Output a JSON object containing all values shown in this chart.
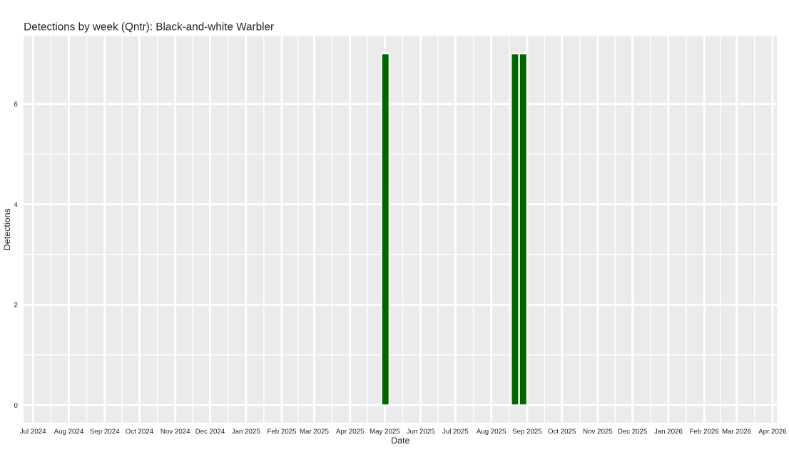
{
  "chart_data": {
    "type": "bar",
    "title": "Detections by week (Qntr): Black-and-white Warbler",
    "xlabel": "Date",
    "ylabel": "Detections",
    "x": [
      "2025-04-28",
      "2025-08-18",
      "2025-08-25"
    ],
    "values": [
      7,
      7,
      7
    ],
    "color": "#006400",
    "xlim": [
      "2024-06-23",
      "2026-04-05"
    ],
    "xticks": [
      {
        "value": "2024-07-01",
        "label": "Jul 2024"
      },
      {
        "value": "2024-08-01",
        "label": "Aug 2024"
      },
      {
        "value": "2024-09-01",
        "label": "Sep 2024"
      },
      {
        "value": "2024-10-01",
        "label": "Oct 2024"
      },
      {
        "value": "2024-11-01",
        "label": "Nov 2024"
      },
      {
        "value": "2024-12-01",
        "label": "Dec 2024"
      },
      {
        "value": "2025-01-01",
        "label": "Jan 2025"
      },
      {
        "value": "2025-02-01",
        "label": "Feb 2025"
      },
      {
        "value": "2025-03-01",
        "label": "Mar 2025"
      },
      {
        "value": "2025-04-01",
        "label": "Apr 2025"
      },
      {
        "value": "2025-05-01",
        "label": "May 2025"
      },
      {
        "value": "2025-06-01",
        "label": "Jun 2025"
      },
      {
        "value": "2025-07-01",
        "label": "Jul 2025"
      },
      {
        "value": "2025-08-01",
        "label": "Aug 2025"
      },
      {
        "value": "2025-09-01",
        "label": "Sep 2025"
      },
      {
        "value": "2025-10-01",
        "label": "Oct 2025"
      },
      {
        "value": "2025-11-01",
        "label": "Nov 2025"
      },
      {
        "value": "2025-12-01",
        "label": "Dec 2025"
      },
      {
        "value": "2026-01-01",
        "label": "Jan 2026"
      },
      {
        "value": "2026-02-01",
        "label": "Feb 2026"
      },
      {
        "value": "2026-03-01",
        "label": "Mar 2026"
      },
      {
        "value": "2026-04-01",
        "label": "Apr 2026"
      }
    ],
    "ylim": [
      -0.35,
      7.35
    ],
    "yticks": [
      0,
      2,
      4,
      6
    ],
    "grid": true
  }
}
